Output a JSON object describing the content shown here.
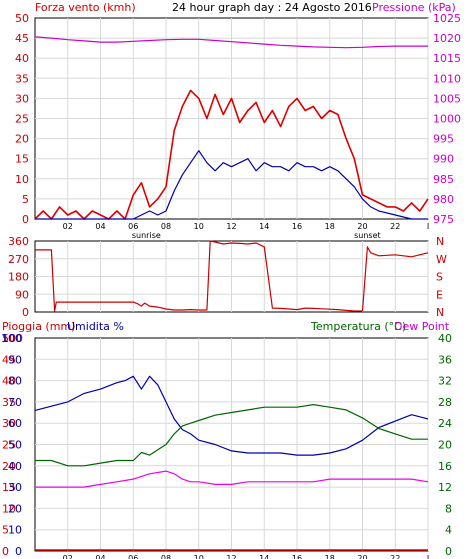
{
  "header": {
    "wind_label": "Forza vento (kmh)",
    "title": "24 hour graph day : 24 Agosto 2016",
    "pressure_label": "Pressione (kPa)"
  },
  "bottom_header": {
    "rain_label": "Pioggia (mm)",
    "humidity_label": "Umidita %",
    "temp_label": "Temperatura (°C)",
    "dew_label": "Dew Point"
  },
  "colors": {
    "wind": "#dd0000",
    "wind_avg": "#0000aa",
    "pressure": "#cc00cc",
    "direction": "#cc0000",
    "humidity": "#0000aa",
    "temperature": "#006600",
    "dewpoint": "#ee00ee",
    "rain": "#dd0000",
    "grid": "#d8d8d8"
  },
  "chart_data": [
    {
      "type": "line",
      "name": "wind-pressure",
      "x_ticks": [
        "02",
        "04",
        "06",
        "08",
        "10",
        "12",
        "14",
        "16",
        "18",
        "20",
        "22",
        "I"
      ],
      "sun_labels": [
        "sunrise",
        "sunset"
      ],
      "sunrise_hour": 6.8,
      "sunset_hour": 20.3,
      "ylim_left": [
        0,
        50
      ],
      "yticks_left": [
        "0",
        "5",
        "10",
        "15",
        "20",
        "25",
        "30",
        "35",
        "40",
        "45",
        "50"
      ],
      "ylim_right": [
        975,
        1025
      ],
      "yticks_right": [
        "975",
        "980",
        "985",
        "990",
        "995",
        "1000",
        "1005",
        "1010",
        "1015",
        "1020",
        "1025"
      ],
      "series": [
        {
          "name": "Forza vento (kmh)",
          "axis": "left",
          "x": [
            0,
            0.5,
            1,
            1.5,
            2,
            2.5,
            3,
            3.5,
            4,
            4.5,
            5,
            5.5,
            6,
            6.5,
            7,
            7.5,
            8,
            8.5,
            9,
            9.5,
            10,
            10.5,
            11,
            11.5,
            12,
            12.5,
            13,
            13.5,
            14,
            14.5,
            15,
            15.5,
            16,
            16.5,
            17,
            17.5,
            18,
            18.5,
            19,
            19.5,
            20,
            20.5,
            21,
            21.5,
            22,
            22.5,
            23,
            23.5,
            24
          ],
          "values": [
            0,
            2,
            0,
            3,
            1,
            2,
            0,
            2,
            1,
            0,
            2,
            0,
            6,
            9,
            3,
            5,
            8,
            22,
            28,
            32,
            30,
            25,
            31,
            26,
            30,
            24,
            27,
            29,
            24,
            27,
            23,
            28,
            30,
            27,
            28,
            25,
            27,
            26,
            20,
            15,
            6,
            5,
            4,
            3,
            3,
            2,
            4,
            2,
            5
          ]
        },
        {
          "name": "Vento medio",
          "axis": "left",
          "x": [
            0,
            1,
            2,
            3,
            4,
            5,
            6,
            6.5,
            7,
            7.5,
            8,
            8.5,
            9,
            9.5,
            10,
            10.5,
            11,
            11.5,
            12,
            12.5,
            13,
            13.5,
            14,
            14.5,
            15,
            15.5,
            16,
            16.5,
            17,
            17.5,
            18,
            18.5,
            19,
            19.5,
            20,
            20.5,
            21,
            22,
            23,
            24
          ],
          "values": [
            0,
            0,
            0,
            0,
            0,
            0,
            0,
            1,
            2,
            1,
            2,
            7,
            11,
            14,
            17,
            14,
            12,
            14,
            13,
            14,
            15,
            12,
            14,
            13,
            13,
            12,
            14,
            13,
            13,
            12,
            13,
            12,
            10,
            8,
            5,
            3,
            2,
            1,
            0,
            0
          ]
        },
        {
          "name": "Pressione (kPa)",
          "axis": "right",
          "x": [
            0,
            1,
            2,
            3,
            4,
            5,
            6,
            7,
            8,
            9,
            10,
            11,
            12,
            13,
            14,
            15,
            16,
            17,
            18,
            19,
            20,
            21,
            22,
            23,
            24
          ],
          "values": [
            1020.3,
            1020.0,
            1019.6,
            1019.3,
            1019.0,
            1019.0,
            1019.2,
            1019.4,
            1019.6,
            1019.7,
            1019.7,
            1019.4,
            1019.1,
            1018.8,
            1018.5,
            1018.2,
            1018.0,
            1017.8,
            1017.7,
            1017.6,
            1017.7,
            1017.9,
            1018.0,
            1018.0,
            1018.0
          ]
        }
      ]
    },
    {
      "type": "line",
      "name": "wind-direction",
      "ylim": [
        0,
        360
      ],
      "yticks": [
        "0",
        "90",
        "180",
        "270",
        "360"
      ],
      "compass": [
        "N",
        "W",
        "S",
        "E",
        "N"
      ],
      "series": [
        {
          "name": "Direzione vento",
          "x": [
            0,
            0.5,
            1,
            1.2,
            1.3,
            2,
            3,
            4,
            5,
            6,
            6.3,
            6.5,
            6.7,
            7,
            7.5,
            8,
            8.5,
            9,
            9.5,
            10,
            10.5,
            10.7,
            11,
            11.5,
            12,
            12.5,
            13,
            13.5,
            14,
            14.5,
            15,
            15.5,
            16,
            16.5,
            17,
            17.5,
            18,
            18.5,
            19,
            19.5,
            20,
            20.3,
            20.5,
            21,
            22,
            23,
            24
          ],
          "values": [
            315,
            315,
            315,
            5,
            50,
            50,
            50,
            50,
            50,
            50,
            40,
            30,
            45,
            30,
            25,
            15,
            10,
            10,
            12,
            10,
            10,
            360,
            355,
            345,
            350,
            348,
            345,
            350,
            330,
            20,
            18,
            15,
            12,
            20,
            18,
            16,
            14,
            12,
            8,
            5,
            5,
            330,
            300,
            285,
            290,
            280,
            300
          ]
        }
      ]
    },
    {
      "type": "line",
      "name": "rain-humidity-temperature",
      "ylim_rain": [
        0,
        100
      ],
      "yticks_rain": [
        "0",
        "5",
        "10",
        "15",
        "20",
        "25",
        "30",
        "35",
        "40",
        "45",
        "50",
        "100"
      ],
      "ylim_hum": [
        0,
        100
      ],
      "yticks_hum": [
        "0",
        "10",
        "20",
        "30",
        "40",
        "50",
        "60",
        "70",
        "80",
        "90",
        "100"
      ],
      "ylim_temp": [
        0,
        40
      ],
      "yticks_temp": [
        "0",
        "4",
        "8",
        "12",
        "16",
        "20",
        "24",
        "28",
        "32",
        "36",
        "40"
      ],
      "series": [
        {
          "name": "Umidita %",
          "axis": "hum",
          "x": [
            0,
            1,
            2,
            3,
            4,
            5,
            5.5,
            6,
            6.5,
            7,
            7.5,
            8,
            8.5,
            9,
            9.5,
            10,
            11,
            12,
            13,
            14,
            15,
            16,
            17,
            18,
            19,
            20,
            21,
            22,
            23,
            24
          ],
          "values": [
            66,
            68,
            70,
            74,
            76,
            79,
            80,
            82,
            76,
            82,
            78,
            70,
            62,
            57,
            55,
            52,
            50,
            47,
            46,
            46,
            46,
            45,
            45,
            46,
            48,
            52,
            58,
            61,
            64,
            62
          ]
        },
        {
          "name": "Temperatura (°C)",
          "axis": "temp",
          "x": [
            0,
            1,
            2,
            3,
            4,
            5,
            6,
            6.5,
            7,
            7.5,
            8,
            8.5,
            9,
            9.5,
            10,
            11,
            12,
            13,
            14,
            15,
            16,
            17,
            18,
            19,
            20,
            21,
            22,
            23,
            24
          ],
          "values": [
            17,
            17,
            16,
            16,
            16.5,
            17,
            17,
            18.5,
            18,
            19,
            20,
            22,
            23.5,
            24,
            24.5,
            25.5,
            26,
            26.5,
            27,
            27,
            27,
            27.5,
            27,
            26.5,
            25,
            23,
            22,
            21,
            21
          ]
        },
        {
          "name": "Dew Point",
          "axis": "temp",
          "x": [
            0,
            1,
            2,
            3,
            4,
            5,
            6,
            7,
            8,
            8.5,
            9,
            9.5,
            10,
            11,
            12,
            13,
            14,
            15,
            16,
            17,
            18,
            19,
            20,
            21,
            22,
            23,
            24
          ],
          "values": [
            12,
            12,
            12,
            12,
            12.5,
            13,
            13.5,
            14.5,
            15,
            14.5,
            13.5,
            13,
            13,
            12.5,
            12.5,
            13,
            13,
            13,
            13,
            13,
            13.5,
            13.5,
            13.5,
            13.5,
            13.5,
            13.5,
            13
          ]
        },
        {
          "name": "Pioggia (mm)",
          "axis": "rain",
          "x": [
            0,
            24
          ],
          "values": [
            0,
            0
          ]
        }
      ]
    }
  ]
}
